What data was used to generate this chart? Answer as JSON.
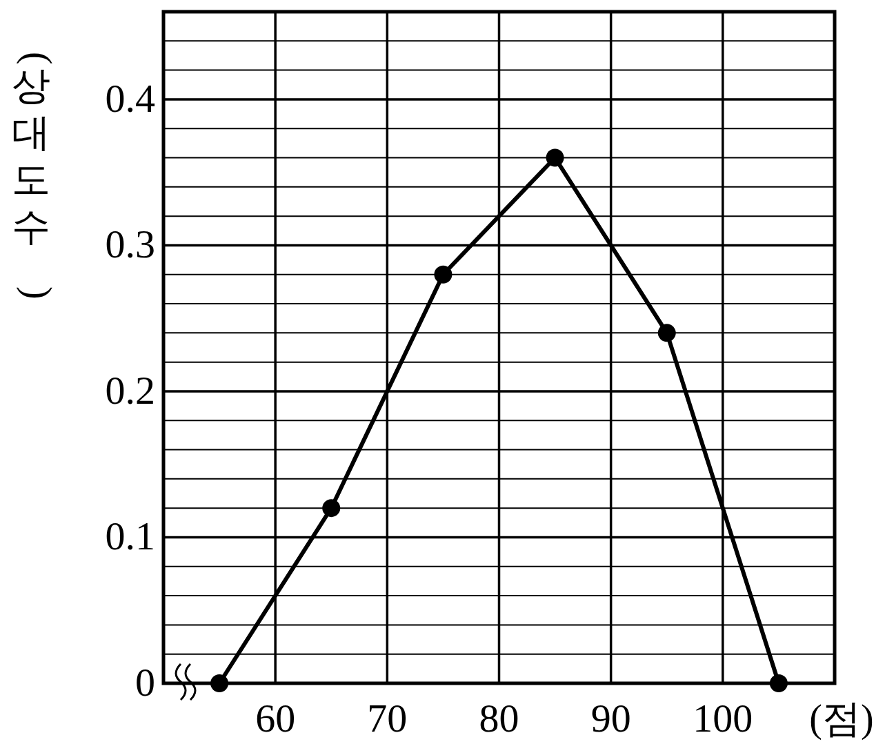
{
  "chart_data": {
    "type": "line",
    "xlabel": "(점)",
    "ylabel": "(상대도수)",
    "x": [
      55,
      65,
      75,
      85,
      95,
      105
    ],
    "values": [
      0,
      0.12,
      0.28,
      0.36,
      0.24,
      0
    ],
    "color": "#000000",
    "marker": "circle",
    "line_style": "solid",
    "xlim": [
      50,
      110
    ],
    "xticks": [
      60,
      70,
      80,
      90,
      100
    ],
    "ylim": [
      0,
      0.46
    ],
    "yticks": [
      0,
      {
        "value": 0.02,
        "label": null
      },
      {
        "value": 0.04,
        "label": null
      },
      {
        "value": 0.06,
        "label": null
      },
      {
        "value": 0.08,
        "label": null
      },
      0.1,
      {
        "value": 0.12,
        "label": null
      },
      {
        "value": 0.14,
        "label": null
      },
      {
        "value": 0.16,
        "label": null
      },
      {
        "value": 0.18,
        "label": null
      },
      0.2,
      {
        "value": 0.22,
        "label": null
      },
      {
        "value": 0.24,
        "label": null
      },
      {
        "value": 0.26,
        "label": null
      },
      {
        "value": 0.28,
        "label": null
      },
      0.3,
      {
        "value": 0.32,
        "label": null
      },
      {
        "value": 0.34,
        "label": null
      },
      {
        "value": 0.36,
        "label": null
      },
      {
        "value": 0.38,
        "label": null
      },
      0.4,
      {
        "value": 0.42,
        "label": null
      },
      {
        "value": 0.44,
        "label": null
      }
    ],
    "grid": true
  }
}
